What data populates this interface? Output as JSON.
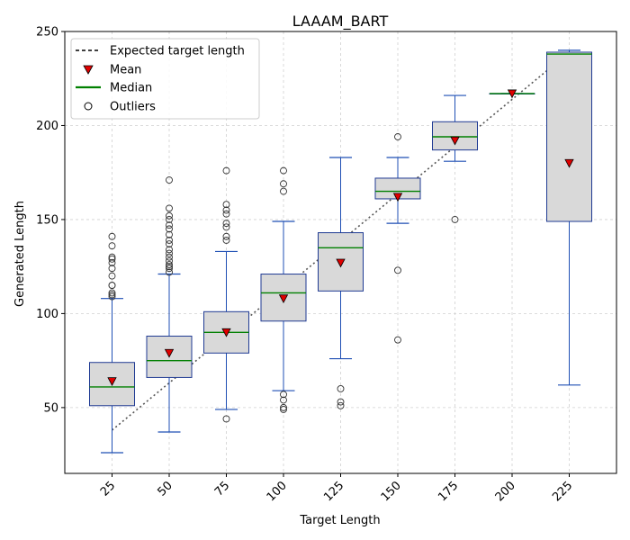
{
  "chart_data": {
    "type": "box",
    "title": "LAAAM_BART",
    "xlabel": "Target Length",
    "ylabel": "Generated Length",
    "ylim": [
      15,
      250
    ],
    "yticks": [
      50,
      100,
      150,
      200,
      250
    ],
    "grid": true,
    "legend_position": "top-left",
    "legend": [
      {
        "key": "expected",
        "label": "Expected target length"
      },
      {
        "key": "mean",
        "label": "Mean"
      },
      {
        "key": "median",
        "label": "Median"
      },
      {
        "key": "outliers",
        "label": "Outliers"
      }
    ],
    "categories": [
      "25",
      "50",
      "75",
      "100",
      "125",
      "150",
      "175",
      "200",
      "225"
    ],
    "boxes": [
      {
        "target": 25,
        "whisker_low": 26,
        "q1": 51,
        "median": 61,
        "q3": 74,
        "whisker_high": 108,
        "mean": 64,
        "outliers": [
          109,
          110,
          111,
          115,
          115,
          120,
          124,
          127,
          129,
          130,
          136,
          141
        ]
      },
      {
        "target": 50,
        "whisker_low": 37,
        "q1": 66,
        "median": 75,
        "q3": 88,
        "whisker_high": 121,
        "mean": 79,
        "outliers": [
          122,
          124,
          125,
          126,
          128,
          130,
          132,
          134,
          137,
          139,
          142,
          145,
          147,
          150,
          152,
          156,
          171
        ]
      },
      {
        "target": 75,
        "whisker_low": 49,
        "q1": 79,
        "median": 90,
        "q3": 101,
        "whisker_high": 133,
        "mean": 90,
        "outliers": [
          44,
          139,
          141,
          146,
          148,
          153,
          155,
          158,
          176
        ]
      },
      {
        "target": 100,
        "whisker_low": 59,
        "q1": 96,
        "median": 111,
        "q3": 121,
        "whisker_high": 149,
        "mean": 108,
        "outliers": [
          49,
          50,
          54,
          57,
          165,
          169,
          176
        ]
      },
      {
        "target": 125,
        "whisker_low": 76,
        "q1": 112,
        "median": 135,
        "q3": 143,
        "whisker_high": 183,
        "mean": 127,
        "outliers": [
          51,
          53,
          60
        ]
      },
      {
        "target": 150,
        "whisker_low": 148,
        "q1": 161,
        "median": 165,
        "q3": 172,
        "whisker_high": 183,
        "mean": 162,
        "outliers": [
          86,
          123,
          194
        ]
      },
      {
        "target": 175,
        "whisker_low": 181,
        "q1": 187,
        "median": 194,
        "q3": 202,
        "whisker_high": 216,
        "mean": 192,
        "outliers": [
          150
        ]
      },
      {
        "target": 200,
        "whisker_low": 217,
        "q1": 217,
        "median": 217,
        "q3": 217,
        "whisker_high": 217,
        "mean": 217,
        "outliers": []
      },
      {
        "target": 225,
        "whisker_low": 62,
        "q1": 149,
        "median": 238,
        "q3": 239,
        "whisker_high": 240,
        "mean": 180,
        "outliers": []
      }
    ],
    "expected_line": {
      "x": [
        25,
        225
      ],
      "y": [
        38,
        239
      ]
    },
    "colors": {
      "box_fill": "#d9d9d9",
      "box_edge": "#1f3a93",
      "whisker": "#1f4fb4",
      "median": "#008000",
      "mean": "#e00000",
      "expected": "#555555",
      "grid": "#d0d0d0"
    }
  }
}
